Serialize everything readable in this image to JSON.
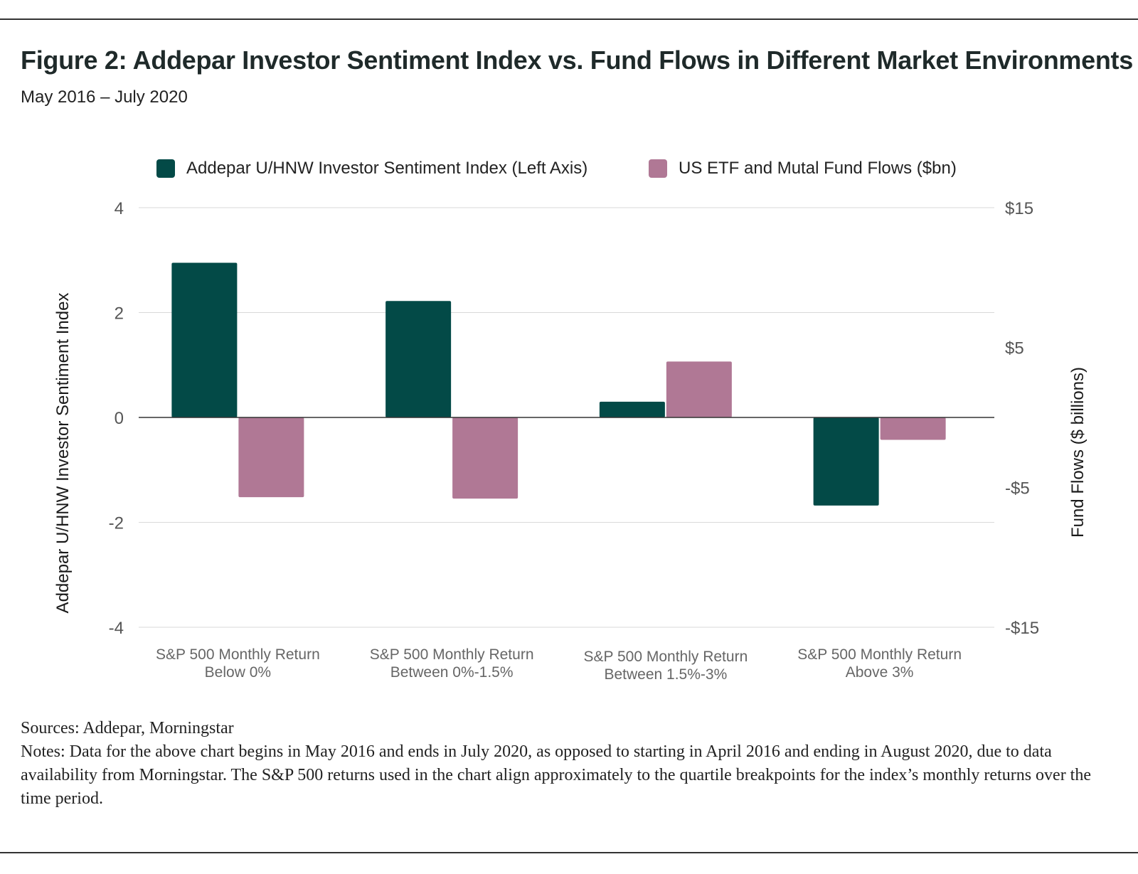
{
  "title": "Figure 2: Addepar Investor Sentiment Index vs. Fund Flows in Different Market Environments",
  "subtitle": "May 2016 – July 2020",
  "legend": [
    {
      "label": "Addepar U/HNW Investor Sentiment Index (Left Axis)",
      "color": "#034a47"
    },
    {
      "label": "US ETF and Mutal Fund Flows ($bn)",
      "color": "#b07895"
    }
  ],
  "footer": {
    "sources": "Sources: Addepar, Morningstar",
    "notes": "Notes:  Data for the above chart begins in May 2016 and ends in July 2020, as opposed to starting in April 2016 and ending in August 2020, due to data availability from Morningstar. The S&P 500 returns used in the chart align approximately to the quartile breakpoints for the index’s monthly returns over the time period."
  },
  "chart_data": {
    "type": "bar",
    "categories": [
      [
        "S&P 500 Monthly Return",
        "Below 0%"
      ],
      [
        "S&P 500 Monthly Return",
        "Between 0%-1.5%"
      ],
      [
        "S&P 500 Monthly Return",
        "Between 1.5%-3%"
      ],
      [
        "S&P 500 Monthly Return",
        "Above 3%"
      ]
    ],
    "series": [
      {
        "name": "Addepar U/HNW Investor Sentiment Index (Left Axis)",
        "axis": "left",
        "values": [
          2.95,
          2.22,
          0.3,
          -1.68
        ],
        "color": "#034a47"
      },
      {
        "name": "US ETF and Mutal Fund Flows ($bn)",
        "axis": "right",
        "values": [
          -5.7,
          -5.8,
          4.0,
          -1.6
        ],
        "color": "#b07895"
      }
    ],
    "ylabel": "Addepar U/HNW Investor Sentiment Index",
    "y2label": "Fund Flows ($ billions)",
    "ylim": [
      -4,
      4
    ],
    "y2lim": [
      -15,
      15
    ],
    "yticks": [
      4,
      2,
      0,
      -2,
      -4
    ],
    "y2ticks": [
      15,
      5,
      -5,
      -15
    ],
    "y2tick_labels": [
      "$15",
      "$5",
      "-$5",
      "-$15"
    ],
    "grid": true
  }
}
